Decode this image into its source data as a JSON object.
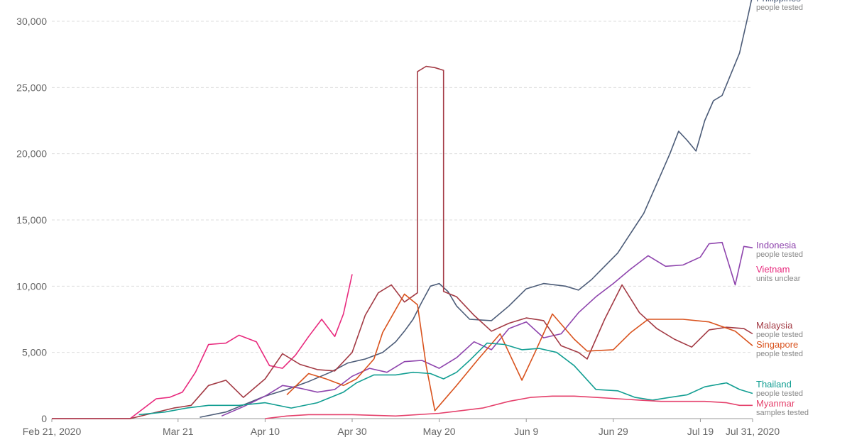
{
  "chart_data": {
    "type": "line",
    "title": "",
    "xlabel": "",
    "ylabel": "",
    "ylim": [
      0,
      32000
    ],
    "x_range": [
      "2020-02-21",
      "2020-07-31"
    ],
    "grid": true,
    "y_ticks": [
      {
        "value": 0,
        "label": "0"
      },
      {
        "value": 5000,
        "label": "5,000"
      },
      {
        "value": 10000,
        "label": "10,000"
      },
      {
        "value": 15000,
        "label": "15,000"
      },
      {
        "value": 20000,
        "label": "20,000"
      },
      {
        "value": 25000,
        "label": "25,000"
      },
      {
        "value": 30000,
        "label": "30,000"
      }
    ],
    "x_ticks": [
      {
        "date": "2020-02-21",
        "label": "Feb 21, 2020"
      },
      {
        "date": "2020-03-21",
        "label": "Mar 21"
      },
      {
        "date": "2020-04-10",
        "label": "Apr 10"
      },
      {
        "date": "2020-04-30",
        "label": "Apr 30"
      },
      {
        "date": "2020-05-20",
        "label": "May 20"
      },
      {
        "date": "2020-06-09",
        "label": "Jun 9"
      },
      {
        "date": "2020-06-29",
        "label": "Jun 29"
      },
      {
        "date": "2020-07-19",
        "label": "Jul 19"
      },
      {
        "date": "2020-07-31",
        "label": "Jul 31, 2020"
      }
    ],
    "series": [
      {
        "name": "Philippines",
        "unit": "people tested",
        "color": "#4c5c78",
        "points": [
          [
            "2020-03-26",
            100
          ],
          [
            "2020-04-01",
            500
          ],
          [
            "2020-04-10",
            1700
          ],
          [
            "2020-04-15",
            2200
          ],
          [
            "2020-04-20",
            2800
          ],
          [
            "2020-04-25",
            3500
          ],
          [
            "2020-04-29",
            4200
          ],
          [
            "2020-05-03",
            4500
          ],
          [
            "2020-05-07",
            5000
          ],
          [
            "2020-05-10",
            5800
          ],
          [
            "2020-05-12",
            6600
          ],
          [
            "2020-05-14",
            7500
          ],
          [
            "2020-05-16",
            8800
          ],
          [
            "2020-05-18",
            10000
          ],
          [
            "2020-05-20",
            10200
          ],
          [
            "2020-05-22",
            9600
          ],
          [
            "2020-05-24",
            8500
          ],
          [
            "2020-05-27",
            7500
          ],
          [
            "2020-06-01",
            7400
          ],
          [
            "2020-06-05",
            8500
          ],
          [
            "2020-06-09",
            9800
          ],
          [
            "2020-06-13",
            10200
          ],
          [
            "2020-06-18",
            10000
          ],
          [
            "2020-06-21",
            9700
          ],
          [
            "2020-06-24",
            10500
          ],
          [
            "2020-06-27",
            11500
          ],
          [
            "2020-06-30",
            12500
          ],
          [
            "2020-07-03",
            14000
          ],
          [
            "2020-07-06",
            15500
          ],
          [
            "2020-07-08",
            17000
          ],
          [
            "2020-07-10",
            18500
          ],
          [
            "2020-07-12",
            20000
          ],
          [
            "2020-07-14",
            21700
          ],
          [
            "2020-07-16",
            21000
          ],
          [
            "2020-07-18",
            20200
          ],
          [
            "2020-07-20",
            22500
          ],
          [
            "2020-07-22",
            24000
          ],
          [
            "2020-07-24",
            24400
          ],
          [
            "2020-07-26",
            26000
          ],
          [
            "2020-07-28",
            27600
          ],
          [
            "2020-07-30",
            30500
          ],
          [
            "2020-07-31",
            32000
          ]
        ]
      },
      {
        "name": "Indonesia",
        "unit": "people tested",
        "color": "#8e44ad",
        "points": [
          [
            "2020-03-31",
            200
          ],
          [
            "2020-04-05",
            900
          ],
          [
            "2020-04-10",
            1700
          ],
          [
            "2020-04-14",
            2500
          ],
          [
            "2020-04-18",
            2300
          ],
          [
            "2020-04-22",
            2000
          ],
          [
            "2020-04-26",
            2200
          ],
          [
            "2020-04-30",
            3200
          ],
          [
            "2020-05-04",
            3800
          ],
          [
            "2020-05-08",
            3500
          ],
          [
            "2020-05-12",
            4300
          ],
          [
            "2020-05-16",
            4400
          ],
          [
            "2020-05-20",
            3800
          ],
          [
            "2020-05-24",
            4600
          ],
          [
            "2020-05-28",
            5800
          ],
          [
            "2020-06-01",
            5200
          ],
          [
            "2020-06-05",
            6800
          ],
          [
            "2020-06-09",
            7300
          ],
          [
            "2020-06-13",
            6100
          ],
          [
            "2020-06-17",
            6400
          ],
          [
            "2020-06-21",
            8000
          ],
          [
            "2020-06-25",
            9200
          ],
          [
            "2020-06-29",
            10200
          ],
          [
            "2020-07-03",
            11300
          ],
          [
            "2020-07-07",
            12300
          ],
          [
            "2020-07-11",
            11500
          ],
          [
            "2020-07-15",
            11600
          ],
          [
            "2020-07-19",
            12200
          ],
          [
            "2020-07-21",
            13200
          ],
          [
            "2020-07-24",
            13300
          ],
          [
            "2020-07-27",
            10100
          ],
          [
            "2020-07-29",
            13000
          ],
          [
            "2020-07-31",
            12900
          ]
        ]
      },
      {
        "name": "Vietnam",
        "unit": "units unclear",
        "color": "#e8297d",
        "points": [
          [
            "2020-02-21",
            0
          ],
          [
            "2020-03-10",
            0
          ],
          [
            "2020-03-16",
            1500
          ],
          [
            "2020-03-19",
            1600
          ],
          [
            "2020-03-22",
            2000
          ],
          [
            "2020-03-25",
            3500
          ],
          [
            "2020-03-28",
            5600
          ],
          [
            "2020-04-01",
            5700
          ],
          [
            "2020-04-04",
            6300
          ],
          [
            "2020-04-08",
            5800
          ],
          [
            "2020-04-11",
            4000
          ],
          [
            "2020-04-14",
            3800
          ],
          [
            "2020-04-17",
            4800
          ],
          [
            "2020-04-20",
            6200
          ],
          [
            "2020-04-23",
            7500
          ],
          [
            "2020-04-26",
            6200
          ],
          [
            "2020-04-28",
            7900
          ],
          [
            "2020-04-30",
            10900
          ]
        ]
      },
      {
        "name": "Malaysia",
        "unit": "people tested",
        "color": "#a33a44",
        "points": [
          [
            "2020-02-21",
            0
          ],
          [
            "2020-03-10",
            0
          ],
          [
            "2020-03-15",
            400
          ],
          [
            "2020-03-20",
            800
          ],
          [
            "2020-03-24",
            1000
          ],
          [
            "2020-03-28",
            2500
          ],
          [
            "2020-04-01",
            2900
          ],
          [
            "2020-04-05",
            1600
          ],
          [
            "2020-04-10",
            3000
          ],
          [
            "2020-04-14",
            4900
          ],
          [
            "2020-04-18",
            4100
          ],
          [
            "2020-04-22",
            3700
          ],
          [
            "2020-04-26",
            3600
          ],
          [
            "2020-04-30",
            5000
          ],
          [
            "2020-05-03",
            7800
          ],
          [
            "2020-05-06",
            9500
          ],
          [
            "2020-05-09",
            10100
          ],
          [
            "2020-05-12",
            8800
          ],
          [
            "2020-05-15",
            9500
          ],
          [
            "2020-05-15",
            26200
          ],
          [
            "2020-05-17",
            26600
          ],
          [
            "2020-05-19",
            26500
          ],
          [
            "2020-05-21",
            26300
          ],
          [
            "2020-05-21",
            9600
          ],
          [
            "2020-05-24",
            9200
          ],
          [
            "2020-05-28",
            7800
          ],
          [
            "2020-06-01",
            6600
          ],
          [
            "2020-06-05",
            7200
          ],
          [
            "2020-06-09",
            7600
          ],
          [
            "2020-06-13",
            7400
          ],
          [
            "2020-06-17",
            5500
          ],
          [
            "2020-06-21",
            5000
          ],
          [
            "2020-06-23",
            4500
          ],
          [
            "2020-06-27",
            7500
          ],
          [
            "2020-07-01",
            10100
          ],
          [
            "2020-07-05",
            8000
          ],
          [
            "2020-07-09",
            6800
          ],
          [
            "2020-07-13",
            6000
          ],
          [
            "2020-07-17",
            5400
          ],
          [
            "2020-07-21",
            6700
          ],
          [
            "2020-07-25",
            6900
          ],
          [
            "2020-07-29",
            6800
          ],
          [
            "2020-07-31",
            6400
          ]
        ]
      },
      {
        "name": "Singapore",
        "unit": "people tested",
        "color": "#d9531e",
        "points": [
          [
            "2020-04-15",
            1800
          ],
          [
            "2020-04-20",
            3400
          ],
          [
            "2020-04-24",
            3000
          ],
          [
            "2020-04-28",
            2500
          ],
          [
            "2020-05-01",
            3000
          ],
          [
            "2020-05-05",
            4500
          ],
          [
            "2020-05-07",
            6500
          ],
          [
            "2020-05-12",
            9400
          ],
          [
            "2020-05-15",
            8600
          ],
          [
            "2020-05-17",
            4000
          ],
          [
            "2020-05-19",
            600
          ],
          [
            "2020-05-24",
            2500
          ],
          [
            "2020-05-29",
            4500
          ],
          [
            "2020-06-03",
            6400
          ],
          [
            "2020-06-08",
            2900
          ],
          [
            "2020-06-11",
            5000
          ],
          [
            "2020-06-15",
            7900
          ],
          [
            "2020-06-20",
            6000
          ],
          [
            "2020-06-23",
            5100
          ],
          [
            "2020-06-29",
            5200
          ],
          [
            "2020-07-03",
            6500
          ],
          [
            "2020-07-07",
            7500
          ],
          [
            "2020-07-15",
            7500
          ],
          [
            "2020-07-21",
            7300
          ],
          [
            "2020-07-27",
            6600
          ],
          [
            "2020-07-31",
            5500
          ]
        ]
      },
      {
        "name": "Thailand",
        "unit": "people tested",
        "color": "#129e92",
        "points": [
          [
            "2020-03-12",
            300
          ],
          [
            "2020-03-18",
            500
          ],
          [
            "2020-03-23",
            800
          ],
          [
            "2020-03-28",
            1000
          ],
          [
            "2020-04-04",
            1000
          ],
          [
            "2020-04-10",
            1200
          ],
          [
            "2020-04-16",
            800
          ],
          [
            "2020-04-22",
            1200
          ],
          [
            "2020-04-28",
            2000
          ],
          [
            "2020-05-01",
            2700
          ],
          [
            "2020-05-05",
            3300
          ],
          [
            "2020-05-10",
            3300
          ],
          [
            "2020-05-14",
            3500
          ],
          [
            "2020-05-18",
            3400
          ],
          [
            "2020-05-21",
            3000
          ],
          [
            "2020-05-24",
            3500
          ],
          [
            "2020-05-27",
            4400
          ],
          [
            "2020-05-31",
            5700
          ],
          [
            "2020-06-04",
            5600
          ],
          [
            "2020-06-08",
            5200
          ],
          [
            "2020-06-12",
            5300
          ],
          [
            "2020-06-16",
            5000
          ],
          [
            "2020-06-20",
            4000
          ],
          [
            "2020-06-25",
            2200
          ],
          [
            "2020-06-30",
            2100
          ],
          [
            "2020-07-04",
            1600
          ],
          [
            "2020-07-08",
            1400
          ],
          [
            "2020-07-12",
            1600
          ],
          [
            "2020-07-16",
            1800
          ],
          [
            "2020-07-20",
            2400
          ],
          [
            "2020-07-25",
            2700
          ],
          [
            "2020-07-28",
            2200
          ],
          [
            "2020-07-31",
            1900
          ]
        ]
      },
      {
        "name": "Myanmar",
        "unit": "samples tested",
        "color": "#e5416c",
        "points": [
          [
            "2020-04-10",
            0
          ],
          [
            "2020-04-15",
            200
          ],
          [
            "2020-04-20",
            300
          ],
          [
            "2020-04-30",
            300
          ],
          [
            "2020-05-10",
            200
          ],
          [
            "2020-05-20",
            400
          ],
          [
            "2020-05-30",
            800
          ],
          [
            "2020-06-05",
            1300
          ],
          [
            "2020-06-10",
            1600
          ],
          [
            "2020-06-15",
            1700
          ],
          [
            "2020-06-20",
            1700
          ],
          [
            "2020-06-25",
            1600
          ],
          [
            "2020-06-30",
            1500
          ],
          [
            "2020-07-05",
            1400
          ],
          [
            "2020-07-10",
            1300
          ],
          [
            "2020-07-15",
            1300
          ],
          [
            "2020-07-20",
            1300
          ],
          [
            "2020-07-25",
            1200
          ],
          [
            "2020-07-28",
            1000
          ],
          [
            "2020-07-31",
            1000
          ]
        ]
      }
    ]
  }
}
